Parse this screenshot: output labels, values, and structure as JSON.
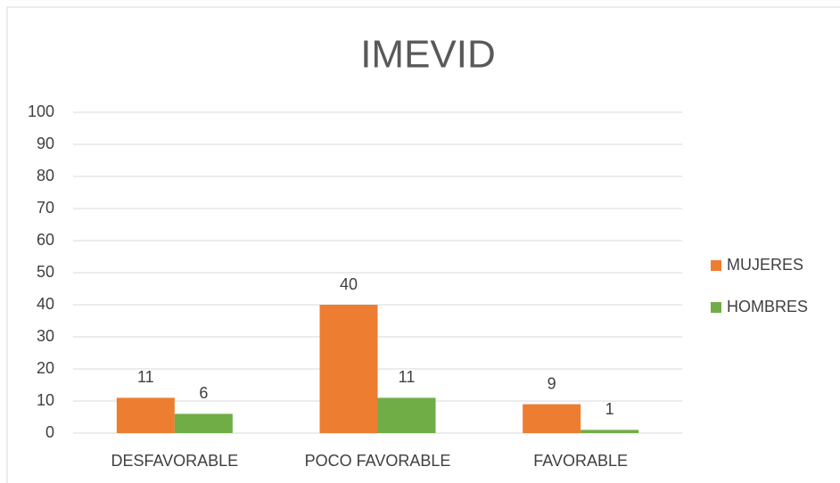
{
  "chart_data": {
    "type": "bar",
    "title": "IMEVID",
    "categories": [
      "DESFAVORABLE",
      "POCO FAVORABLE",
      "FAVORABLE"
    ],
    "series": [
      {
        "name": "MUJERES",
        "color": "#ed7d31",
        "values": [
          11,
          40,
          9
        ]
      },
      {
        "name": "HOMBRES",
        "color": "#70ad47",
        "values": [
          6,
          11,
          1
        ]
      }
    ],
    "ylim": [
      0,
      100
    ],
    "yticks": [
      0,
      10,
      20,
      30,
      40,
      50,
      60,
      70,
      80,
      90,
      100
    ],
    "grid": true,
    "legend": "right",
    "data_labels": true
  }
}
